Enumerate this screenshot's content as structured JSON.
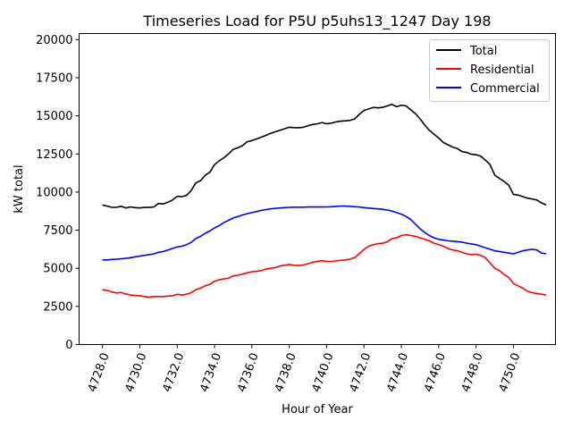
{
  "chart_data": {
    "type": "line",
    "title": "Timeseries Load for P5U p5uhs13_1247  Day 198",
    "xlabel": "Hour of Year",
    "ylabel": "kW total",
    "xlim": [
      4726.75,
      4752.25
    ],
    "ylim": [
      0,
      20400
    ],
    "xticks": [
      4728,
      4730,
      4732,
      4734,
      4736,
      4738,
      4740,
      4742,
      4744,
      4746,
      4748,
      4750
    ],
    "xtick_labels": [
      "4728.0",
      "4730.0",
      "4732.0",
      "4734.0",
      "4736.0",
      "4738.0",
      "4740.0",
      "4742.0",
      "4744.0",
      "4746.0",
      "4748.0",
      "4750.0"
    ],
    "yticks": [
      0,
      2500,
      5000,
      7500,
      10000,
      12500,
      15000,
      17500,
      20000
    ],
    "ytick_labels": [
      "0",
      "2500",
      "5000",
      "7500",
      "10000",
      "12500",
      "15000",
      "17500",
      "20000"
    ],
    "legend_position": "top-right",
    "x": [
      4728.0,
      4728.25,
      4728.5,
      4728.75,
      4729.0,
      4729.25,
      4729.5,
      4729.75,
      4730.0,
      4730.25,
      4730.5,
      4730.75,
      4731.0,
      4731.25,
      4731.5,
      4731.75,
      4732.0,
      4732.25,
      4732.5,
      4732.75,
      4733.0,
      4733.25,
      4733.5,
      4733.75,
      4734.0,
      4734.25,
      4734.5,
      4734.75,
      4735.0,
      4735.25,
      4735.5,
      4735.75,
      4736.0,
      4736.25,
      4736.5,
      4736.75,
      4737.0,
      4737.25,
      4737.5,
      4737.75,
      4738.0,
      4738.25,
      4738.5,
      4738.75,
      4739.0,
      4739.25,
      4739.5,
      4739.75,
      4740.0,
      4740.25,
      4740.5,
      4740.75,
      4741.0,
      4741.25,
      4741.5,
      4741.75,
      4742.0,
      4742.25,
      4742.5,
      4742.75,
      4743.0,
      4743.25,
      4743.5,
      4743.75,
      4744.0,
      4744.25,
      4744.5,
      4744.75,
      4745.0,
      4745.25,
      4745.5,
      4745.75,
      4746.0,
      4746.25,
      4746.5,
      4746.75,
      4747.0,
      4747.25,
      4747.5,
      4747.75,
      4748.0,
      4748.25,
      4748.5,
      4748.75,
      4749.0,
      4749.25,
      4749.5,
      4749.75,
      4750.0,
      4750.25,
      4750.5,
      4750.75,
      4751.0,
      4751.25,
      4751.5,
      4751.75
    ],
    "series": [
      {
        "name": "Total",
        "color": "#000000",
        "values": [
          9150,
          9080,
          9000,
          9000,
          9070,
          8960,
          9030,
          8980,
          8960,
          9000,
          8990,
          9020,
          9250,
          9220,
          9330,
          9480,
          9720,
          9700,
          9780,
          10100,
          10600,
          10750,
          11100,
          11300,
          11800,
          12050,
          12250,
          12500,
          12800,
          12900,
          13050,
          13300,
          13380,
          13480,
          13600,
          13720,
          13850,
          13950,
          14050,
          14150,
          14250,
          14230,
          14220,
          14250,
          14350,
          14430,
          14480,
          14560,
          14480,
          14520,
          14600,
          14650,
          14670,
          14700,
          14800,
          15100,
          15350,
          15450,
          15550,
          15520,
          15560,
          15650,
          15750,
          15600,
          15700,
          15650,
          15400,
          15150,
          14800,
          14400,
          14050,
          13800,
          13550,
          13250,
          13100,
          12950,
          12850,
          12650,
          12600,
          12480,
          12450,
          12350,
          12100,
          11800,
          11100,
          10900,
          10700,
          10450,
          9850,
          9800,
          9700,
          9600,
          9550,
          9480,
          9300,
          9150
        ]
      },
      {
        "name": "Residential",
        "color": "#ff0000",
        "values": [
          3600,
          3550,
          3450,
          3380,
          3420,
          3320,
          3250,
          3220,
          3200,
          3150,
          3100,
          3150,
          3150,
          3150,
          3180,
          3200,
          3300,
          3250,
          3300,
          3400,
          3600,
          3700,
          3850,
          3950,
          4150,
          4250,
          4300,
          4350,
          4500,
          4550,
          4620,
          4700,
          4780,
          4800,
          4850,
          4950,
          5000,
          5050,
          5150,
          5200,
          5250,
          5200,
          5180,
          5220,
          5300,
          5400,
          5450,
          5500,
          5450,
          5450,
          5480,
          5520,
          5550,
          5600,
          5700,
          5950,
          6250,
          6450,
          6550,
          6620,
          6650,
          6750,
          6950,
          7000,
          7150,
          7200,
          7150,
          7100,
          7000,
          6900,
          6800,
          6650,
          6550,
          6450,
          6300,
          6200,
          6150,
          6050,
          5950,
          5900,
          5920,
          5850,
          5700,
          5350,
          5000,
          4850,
          4600,
          4400,
          4000,
          3850,
          3700,
          3500,
          3400,
          3350,
          3300,
          3250
        ]
      },
      {
        "name": "Commercial",
        "color": "#0000ff",
        "values": [
          5550,
          5550,
          5580,
          5600,
          5620,
          5650,
          5700,
          5750,
          5800,
          5850,
          5900,
          5950,
          6050,
          6100,
          6200,
          6300,
          6400,
          6450,
          6550,
          6700,
          6950,
          7100,
          7300,
          7450,
          7650,
          7800,
          8000,
          8150,
          8300,
          8400,
          8500,
          8580,
          8650,
          8720,
          8800,
          8850,
          8900,
          8930,
          8960,
          8980,
          9000,
          9010,
          9010,
          9010,
          9020,
          9020,
          9020,
          9020,
          9030,
          9040,
          9060,
          9080,
          9080,
          9060,
          9040,
          9020,
          8980,
          8950,
          8920,
          8900,
          8870,
          8820,
          8750,
          8650,
          8550,
          8400,
          8200,
          7900,
          7600,
          7350,
          7150,
          7000,
          6900,
          6850,
          6800,
          6780,
          6750,
          6720,
          6650,
          6600,
          6550,
          6450,
          6350,
          6250,
          6150,
          6100,
          6050,
          6000,
          5950,
          6050,
          6150,
          6200,
          6250,
          6200,
          6000,
          5950
        ]
      }
    ]
  }
}
